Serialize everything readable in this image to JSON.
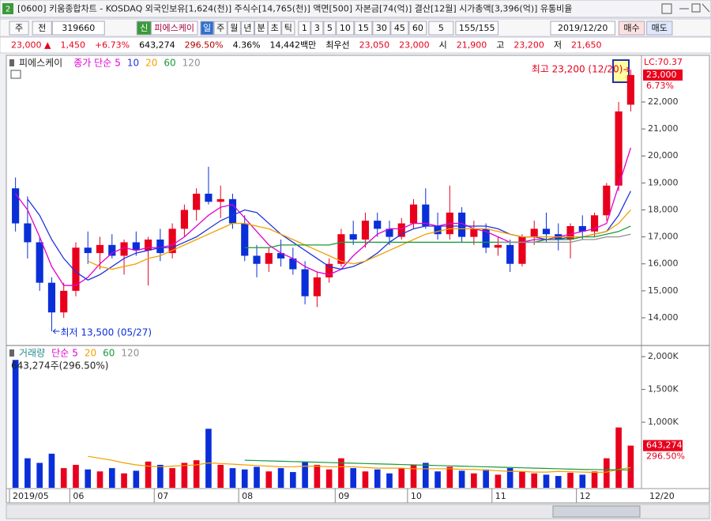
{
  "window": {
    "number": "2",
    "title": "[0600] 키움종합차트 - KOSDAQ 외국인보유[1,624(천)] 주식수[14,765(천)] 액면[500] 자본금[74(억)] 결산[12월] 시가총액[3,396(억)] 유통비율"
  },
  "toolbar": {
    "market": "주",
    "scope": "전",
    "code": "319660",
    "badge": "신",
    "name": "피에스케이",
    "periods": [
      "일",
      "주",
      "월",
      "년",
      "분",
      "초",
      "틱"
    ],
    "intervals": [
      "1",
      "3",
      "5",
      "10",
      "15",
      "30",
      "45",
      "60"
    ],
    "count": "5",
    "range": "155/155",
    "date": "2019/12/20",
    "buy": "매수",
    "sell": "매도"
  },
  "info": [
    {
      "text": "23,000 ▲",
      "color": "#e8001c"
    },
    {
      "text": "1,450",
      "color": "#e8001c"
    },
    {
      "text": "+6.73%",
      "color": "#e8001c"
    },
    {
      "text": "643,274",
      "color": "#000000"
    },
    {
      "text": "296.50%",
      "color": "#b00000"
    },
    {
      "text": "4.36%",
      "color": "#000000"
    },
    {
      "text": "14,442백만",
      "color": "#000000"
    },
    {
      "text": "최우선",
      "color": "#000000"
    },
    {
      "text": "23,050",
      "color": "#e8001c"
    },
    {
      "text": "23,000",
      "color": "#e8001c"
    },
    {
      "text": "시",
      "color": "#000000"
    },
    {
      "text": "21,900",
      "color": "#e8001c"
    },
    {
      "text": "고",
      "color": "#000000"
    },
    {
      "text": "23,200",
      "color": "#e8001c"
    },
    {
      "text": "저",
      "color": "#000000"
    },
    {
      "text": "21,650",
      "color": "#e8001c"
    }
  ],
  "chart_data": {
    "type": "candlestick",
    "title": "피에스케이",
    "legend_label": "종가 단순",
    "categories": [
      "2019/05",
      null,
      null,
      null,
      null,
      "06",
      null,
      null,
      null,
      null,
      null,
      null,
      "07",
      null,
      null,
      null,
      null,
      null,
      null,
      "08",
      null,
      null,
      null,
      null,
      null,
      null,
      null,
      "09",
      null,
      null,
      null,
      null,
      null,
      "10",
      null,
      null,
      null,
      null,
      null,
      null,
      "11",
      null,
      null,
      null,
      null,
      null,
      null,
      "12",
      null,
      null,
      null,
      null
    ],
    "open": [
      18800,
      17500,
      16800,
      15300,
      14200,
      15000,
      16600,
      16400,
      16700,
      16300,
      16800,
      16500,
      16900,
      16400,
      17300,
      18000,
      18600,
      18300,
      18400,
      17500,
      16300,
      16000,
      16400,
      16200,
      15800,
      14800,
      15500,
      16000,
      17100,
      16900,
      17600,
      17300,
      17000,
      17500,
      18200,
      17400,
      17100,
      17900,
      17000,
      17300,
      16600,
      16700,
      16000,
      17000,
      17300,
      17100,
      16900,
      17400,
      17200,
      17800,
      18900,
      21900
    ],
    "high": [
      19200,
      18500,
      17000,
      15500,
      15300,
      16800,
      17200,
      17000,
      17100,
      16900,
      17200,
      17000,
      17300,
      17500,
      18200,
      18800,
      19600,
      18900,
      18600,
      17800,
      16700,
      16600,
      16900,
      16600,
      16100,
      15700,
      16200,
      17300,
      17600,
      17900,
      17900,
      17600,
      17700,
      18400,
      18800,
      17900,
      18900,
      18100,
      17600,
      17500,
      17000,
      16900,
      17100,
      17600,
      17900,
      17500,
      17500,
      17800,
      17900,
      19000,
      22000,
      23200
    ],
    "low": [
      17200,
      16200,
      15000,
      13500,
      14000,
      14800,
      16000,
      15800,
      16200,
      15600,
      16300,
      15200,
      16100,
      16200,
      17000,
      17600,
      18200,
      17700,
      17300,
      16100,
      15500,
      15700,
      15900,
      15600,
      14500,
      14400,
      15300,
      15900,
      16700,
      16600,
      17000,
      16700,
      16900,
      17300,
      17300,
      16900,
      16900,
      16800,
      16700,
      16400,
      16300,
      15700,
      15900,
      16700,
      16800,
      16500,
      16200,
      16900,
      17000,
      17600,
      18700,
      21650
    ],
    "close": [
      17500,
      16800,
      15300,
      14200,
      15000,
      16600,
      16400,
      16700,
      16300,
      16800,
      16500,
      16900,
      16400,
      17300,
      18000,
      18600,
      18300,
      18400,
      17500,
      16300,
      16000,
      16400,
      16200,
      15800,
      14800,
      15500,
      16000,
      17100,
      16900,
      17600,
      17300,
      17000,
      17500,
      18200,
      17400,
      17100,
      17900,
      17000,
      17300,
      16600,
      16700,
      16000,
      17000,
      17300,
      17100,
      16900,
      17400,
      17200,
      17800,
      18900,
      21650,
      23000
    ],
    "up_color": "#e8001c",
    "down_color": "#0a2fd8",
    "lines": [
      {
        "name": "5",
        "color": "#e000d0",
        "values": [
          18600,
          18000,
          17000,
          15900,
          15200,
          15200,
          15500,
          16000,
          16400,
          16600,
          16500,
          16600,
          16600,
          16700,
          17000,
          17400,
          17800,
          18100,
          18200,
          17700,
          17200,
          16700,
          16400,
          16200,
          15900,
          15700,
          15600,
          15800,
          16300,
          16700,
          17100,
          17300,
          17300,
          17500,
          17500,
          17400,
          17500,
          17500,
          17300,
          17200,
          17000,
          16800,
          16800,
          16900,
          16900,
          17000,
          17100,
          17200,
          17300,
          17500,
          18900,
          20300
        ]
      },
      {
        "name": "10",
        "color": "#2233dd",
        "values": [
          null,
          18400,
          17800,
          16900,
          16200,
          15700,
          15400,
          15600,
          15900,
          16200,
          16400,
          16500,
          16600,
          16600,
          16800,
          17000,
          17300,
          17600,
          17800,
          18000,
          17900,
          17500,
          17100,
          16800,
          16500,
          16200,
          15900,
          15800,
          15900,
          16100,
          16400,
          16800,
          17100,
          17300,
          17400,
          17400,
          17400,
          17400,
          17400,
          17400,
          17300,
          17100,
          17000,
          17000,
          16900,
          16900,
          17000,
          17000,
          17100,
          17200,
          17800,
          18700
        ]
      },
      {
        "name": "20",
        "color": "#f0a000",
        "values": [
          null,
          null,
          null,
          null,
          null,
          null,
          16100,
          15900,
          15800,
          15900,
          16000,
          16200,
          16300,
          16500,
          16700,
          16900,
          17100,
          17300,
          17500,
          17500,
          17400,
          17300,
          17100,
          16900,
          16700,
          16500,
          16300,
          16100,
          16000,
          16100,
          16300,
          16500,
          16700,
          16900,
          17100,
          17200,
          17300,
          17300,
          17300,
          17300,
          17200,
          17100,
          17000,
          17000,
          17000,
          17000,
          17000,
          17000,
          17100,
          17200,
          17500,
          18000
        ]
      },
      {
        "name": "60",
        "color": "#1a9a3a",
        "values": [
          null,
          null,
          null,
          null,
          null,
          null,
          null,
          null,
          null,
          null,
          null,
          null,
          null,
          null,
          null,
          null,
          null,
          null,
          null,
          16600,
          16600,
          16600,
          16700,
          16700,
          16700,
          16700,
          16700,
          16800,
          16800,
          16800,
          16800,
          16800,
          16800,
          16800,
          16800,
          16800,
          16800,
          16800,
          16800,
          16800,
          16800,
          16800,
          16800,
          16800,
          16900,
          16900,
          16900,
          17000,
          17000,
          17100,
          17200,
          17400
        ]
      },
      {
        "name": "120",
        "color": "#909090",
        "values": [
          null,
          null,
          null,
          null,
          null,
          null,
          null,
          null,
          null,
          null,
          null,
          null,
          null,
          null,
          null,
          null,
          null,
          null,
          null,
          null,
          null,
          null,
          null,
          null,
          null,
          null,
          null,
          null,
          null,
          null,
          null,
          null,
          null,
          null,
          null,
          null,
          null,
          null,
          null,
          null,
          16800,
          16800,
          16800,
          16800,
          16800,
          16800,
          16800,
          16900,
          16900,
          17000,
          17000,
          17100
        ]
      }
    ],
    "ylim": [
      12974,
      23729
    ],
    "yticks": [
      {
        "value": 14000,
        "label": "14,000"
      },
      {
        "value": 15000,
        "label": "15,000"
      },
      {
        "value": 16000,
        "label": "16,000"
      },
      {
        "value": 17000,
        "label": "17,000"
      },
      {
        "value": 18000,
        "label": "18,000"
      },
      {
        "value": 19000,
        "label": "19,000"
      },
      {
        "value": 20000,
        "label": "20,000"
      },
      {
        "value": 21000,
        "label": "21,000"
      },
      {
        "value": 22000,
        "label": "22,000"
      }
    ],
    "current": {
      "value": 23000,
      "label": "23,000"
    },
    "change_label": "6.73%",
    "lc_label": "LC:70.37",
    "high_note": "최고 23,200 (12/20)",
    "low_note": "최저 13,500 (05/27)",
    "end_date": "12/20",
    "volume": {
      "title": "거래량",
      "legend_label": "단순",
      "legend": [
        {
          "name": "5",
          "color": "#e000d0"
        },
        {
          "name": "20",
          "color": "#f0a000"
        },
        {
          "name": "60",
          "color": "#1a9a3a"
        },
        {
          "name": "120",
          "color": "#909090"
        }
      ],
      "values": [
        1950000,
        450000,
        380000,
        520000,
        300000,
        350000,
        280000,
        250000,
        300000,
        220000,
        260000,
        400000,
        350000,
        300000,
        380000,
        420000,
        900000,
        350000,
        300000,
        280000,
        320000,
        250000,
        300000,
        240000,
        400000,
        350000,
        280000,
        450000,
        300000,
        250000,
        280000,
        220000,
        300000,
        350000,
        380000,
        250000,
        320000,
        260000,
        220000,
        280000,
        200000,
        300000,
        250000,
        220000,
        200000,
        180000,
        230000,
        200000,
        250000,
        450000,
        920000,
        643274
      ],
      "lines": [
        {
          "color": "#f0a000",
          "values": [
            null,
            null,
            null,
            null,
            null,
            null,
            480000,
            450000,
            420000,
            380000,
            350000,
            330000,
            320000,
            330000,
            340000,
            350000,
            380000,
            370000,
            360000,
            350000,
            340000,
            330000,
            320000,
            320000,
            330000,
            330000,
            320000,
            320000,
            320000,
            310000,
            300000,
            300000,
            300000,
            290000,
            290000,
            290000,
            290000,
            280000,
            280000,
            270000,
            260000,
            250000,
            250000,
            240000,
            240000,
            250000,
            245000,
            240000,
            235000,
            240000,
            280000,
            310000
          ]
        },
        {
          "color": "#1a9a3a",
          "values": [
            null,
            null,
            null,
            null,
            null,
            null,
            null,
            null,
            null,
            null,
            null,
            null,
            null,
            null,
            null,
            null,
            null,
            null,
            null,
            420000,
            415000,
            410000,
            405000,
            400000,
            395000,
            390000,
            385000,
            380000,
            375000,
            370000,
            365000,
            360000,
            355000,
            350000,
            345000,
            340000,
            335000,
            330000,
            325000,
            320000,
            315000,
            310000,
            305000,
            300000,
            295000,
            290000,
            285000,
            280000,
            278000,
            276000,
            274000,
            272000
          ]
        }
      ],
      "ylim": [
        0,
        2170000
      ],
      "yticks": [
        {
          "value": 1000000,
          "label": "1,000K"
        },
        {
          "value": 1500000,
          "label": "1,500K"
        },
        {
          "value": 2000000,
          "label": "2,000K"
        }
      ],
      "summary": "643,274주(296.50%)",
      "current_label": "643,274",
      "ratio_label": "296.50%"
    }
  }
}
